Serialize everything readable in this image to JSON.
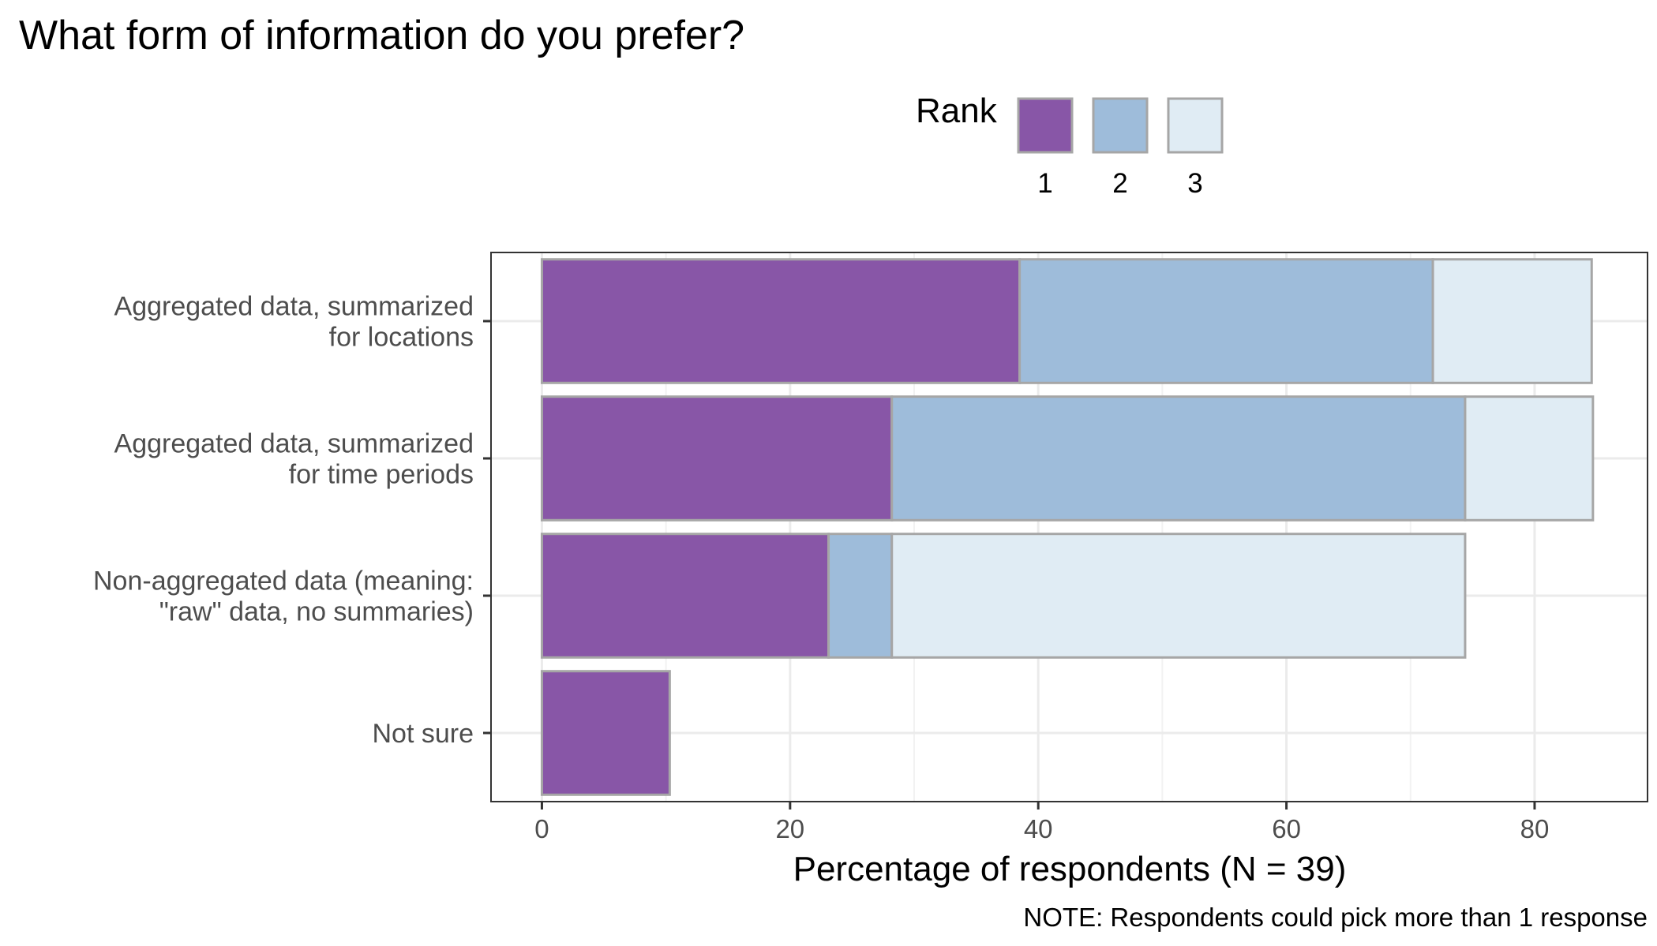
{
  "chart_data": {
    "type": "bar",
    "orientation": "horizontal",
    "stacked": true,
    "title": "What form of information do you prefer?",
    "xlabel": "Percentage of respondents (N = 39)",
    "ylabel": "",
    "caption": "NOTE: Respondents could pick more than 1 response",
    "xlim": [
      -4.1,
      89.1
    ],
    "xticks": [
      0,
      20,
      40,
      60,
      80
    ],
    "grid": true,
    "legend": {
      "title": "Rank",
      "position": "top"
    },
    "categories": [
      [
        "Aggregated data, summarized",
        "for locations"
      ],
      [
        "Aggregated data, summarized",
        "for time periods"
      ],
      [
        "Non-aggregated data (meaning:",
        "\"raw\" data, no summaries)"
      ],
      [
        "Not sure"
      ]
    ],
    "series": [
      {
        "name": "1",
        "color": "#8856a7",
        "values": [
          38.5,
          28.2,
          23.1,
          10.3
        ]
      },
      {
        "name": "2",
        "color": "#9ebcda",
        "values": [
          33.3,
          46.2,
          5.1,
          0
        ]
      },
      {
        "name": "3",
        "color": "#e0ecf4",
        "values": [
          12.8,
          10.3,
          46.2,
          0
        ]
      }
    ],
    "bar_outline_color": "#a6a6a6"
  }
}
